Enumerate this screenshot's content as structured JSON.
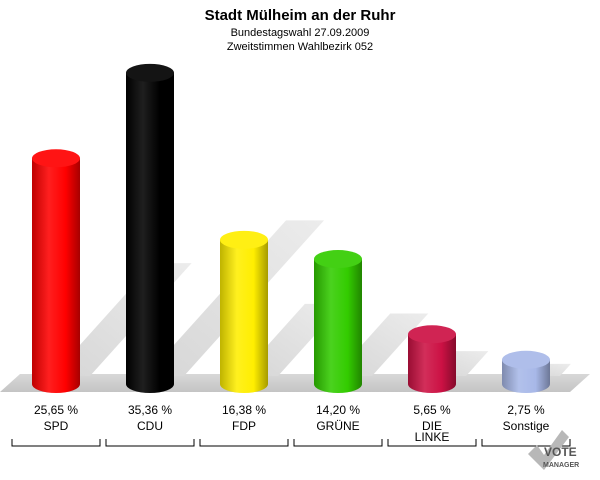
{
  "chart_data": {
    "type": "bar",
    "title": "Stadt Mülheim an der Ruhr",
    "subtitle_1": "Bundestagswahl 27.09.2009",
    "subtitle_2": "Zweitstimmen Wahlbezirk 052",
    "categories": [
      "SPD",
      "CDU",
      "FDP",
      "GRÜNE",
      "DIE LINKE",
      "Sonstige"
    ],
    "category_lines": [
      [
        "SPD"
      ],
      [
        "CDU"
      ],
      [
        "FDP"
      ],
      [
        "GRÜNE"
      ],
      [
        "DIE",
        "LINKE"
      ],
      [
        "Sonstige"
      ]
    ],
    "values": [
      25.65,
      35.36,
      16.38,
      14.2,
      5.65,
      2.75
    ],
    "value_labels": [
      "25,65 %",
      "35,36 %",
      "16,38 %",
      "14,20 %",
      "5,65 %",
      "2,75 %"
    ],
    "colors": [
      "#ff0000",
      "#000000",
      "#ffee00",
      "#33cc00",
      "#cc1144",
      "#a8b8e8"
    ],
    "unit": "%"
  },
  "logo": {
    "line1": "VOTE",
    "line2": "MANAGER"
  }
}
